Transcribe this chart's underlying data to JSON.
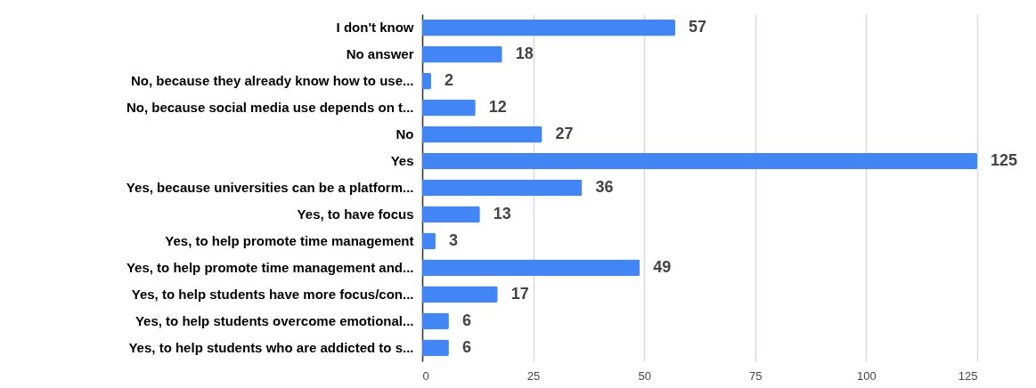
{
  "chart_data": {
    "type": "bar",
    "orientation": "horizontal",
    "categories": [
      "I don't know",
      "No answer",
      "No, because they already know how to use...",
      "No, because social media use depends on t...",
      "No",
      "Yes",
      "Yes, because universities can be a platform...",
      "Yes, to have focus",
      "Yes, to help promote time management",
      "Yes, to help promote time management and...",
      "Yes, to help students have more focus/con...",
      "Yes, to help students overcome emotional...",
      "Yes, to help students who are addicted to s..."
    ],
    "values": [
      57,
      18,
      2,
      12,
      27,
      125,
      36,
      13,
      3,
      49,
      17,
      6,
      6
    ],
    "color": "#4285f4",
    "xlim": [
      0,
      125
    ],
    "xticks": [
      0,
      25,
      50,
      75,
      100,
      125
    ],
    "grid": "x",
    "data_labels": true
  }
}
